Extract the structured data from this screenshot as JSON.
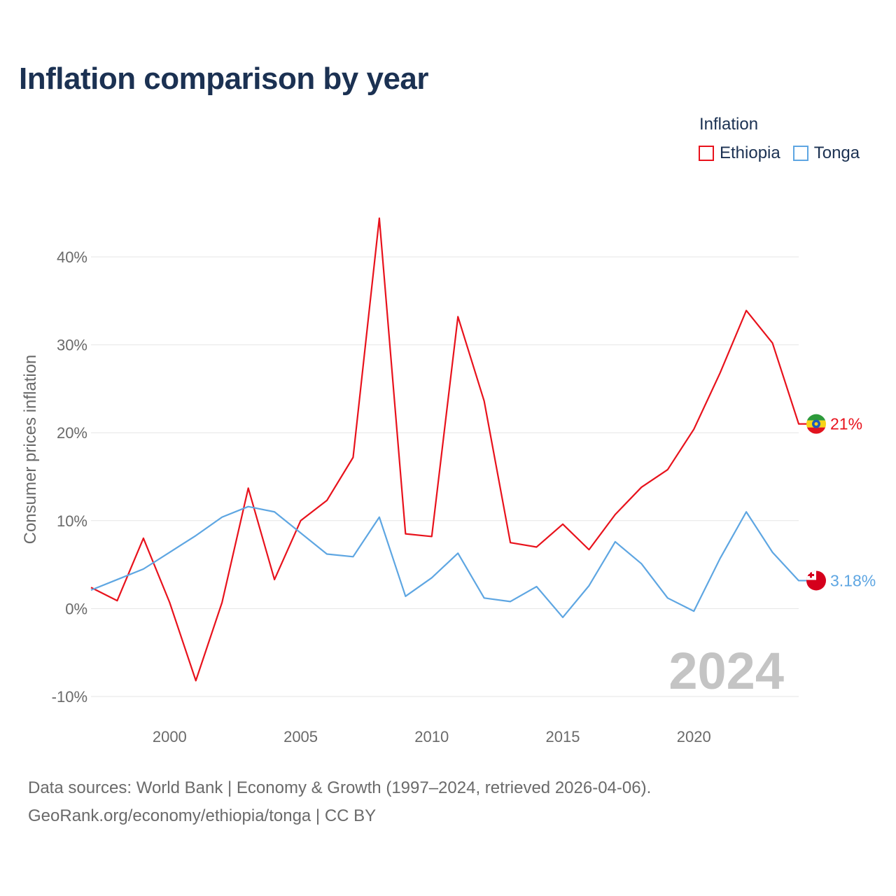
{
  "title": "Inflation comparison by year",
  "legend": {
    "title": "Inflation",
    "items": [
      {
        "label": "Ethiopia",
        "color": "#e8121c"
      },
      {
        "label": "Tonga",
        "color": "#5ea6e2"
      }
    ]
  },
  "footer": {
    "line1": "Data sources: World Bank | Economy & Growth (1997–2024, retrieved 2026-04-06).",
    "line2": "GeoRank.org/economy/ethiopia/tonga | CC BY"
  },
  "chart_data": {
    "type": "line",
    "title": "Inflation comparison by year",
    "ylabel": "Consumer prices inflation",
    "xlabel": "",
    "year_watermark": "2024",
    "x": [
      1997,
      1998,
      1999,
      2000,
      2001,
      2002,
      2003,
      2004,
      2005,
      2006,
      2007,
      2008,
      2009,
      2010,
      2011,
      2012,
      2013,
      2014,
      2015,
      2016,
      2017,
      2018,
      2019,
      2020,
      2021,
      2022,
      2023,
      2024
    ],
    "xlim": [
      1997,
      2024
    ],
    "ylim": [
      -13,
      47
    ],
    "xticks": [
      2000,
      2005,
      2010,
      2015,
      2020
    ],
    "xtick_labels": [
      "2000",
      "2005",
      "2010",
      "2015",
      "2020"
    ],
    "yticks": [
      -10,
      0,
      10,
      20,
      30,
      40
    ],
    "ytick_labels": [
      "-10%",
      "0%",
      "10%",
      "20%",
      "30%",
      "40%"
    ],
    "grid": true,
    "series": [
      {
        "name": "Ethiopia",
        "color": "#e8121c",
        "values": [
          2.4,
          0.9,
          8.0,
          0.7,
          -8.2,
          0.7,
          13.7,
          3.3,
          10.0,
          12.3,
          17.2,
          44.4,
          8.5,
          8.2,
          33.2,
          23.6,
          7.5,
          7.0,
          9.6,
          6.7,
          10.7,
          13.8,
          15.8,
          20.4,
          26.8,
          33.9,
          30.2,
          21.0
        ],
        "end_label": "21%",
        "end_value": 21.0
      },
      {
        "name": "Tonga",
        "color": "#5ea6e2",
        "values": [
          2.1,
          3.3,
          4.5,
          6.4,
          8.3,
          10.4,
          11.6,
          11.0,
          8.6,
          6.2,
          5.9,
          10.4,
          1.4,
          3.5,
          6.3,
          1.2,
          0.8,
          2.5,
          -1.0,
          2.6,
          7.6,
          5.1,
          1.2,
          -0.3,
          5.7,
          11.0,
          6.4,
          3.18
        ],
        "end_label": "3.18%",
        "end_value": 3.18
      }
    ]
  }
}
